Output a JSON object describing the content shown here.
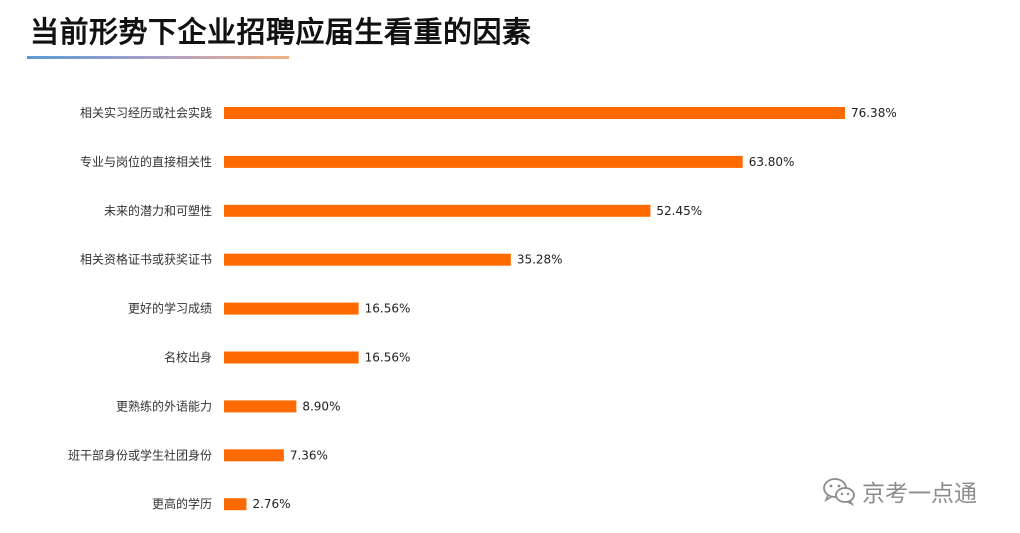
{
  "title": "当前形势下企业招聘应届生看重的因素",
  "watermark": {
    "text": "京考一点通",
    "icon": "wechat-icon"
  },
  "colors": {
    "bar": "#ff6a00",
    "accent_line_start": "#5b9bd5",
    "accent_line_end": "#f4b183"
  },
  "chart_data": {
    "type": "bar",
    "orientation": "horizontal",
    "title": "当前形势下企业招聘应届生看重的因素",
    "xlabel": "",
    "ylabel": "",
    "xlim": [
      0,
      100
    ],
    "grid": false,
    "legend": "none",
    "categories": [
      "相关实习经历或社会实践",
      "专业与岗位的直接相关性",
      "未来的潜力和可塑性",
      "相关资格证书或获奖证书",
      "更好的学习成绩",
      "名校出身",
      "更熟练的外语能力",
      "班干部身份或学生社团身份",
      "更高的学历"
    ],
    "values": [
      76.38,
      63.8,
      52.45,
      35.28,
      16.56,
      16.56,
      8.9,
      7.36,
      2.76
    ],
    "value_labels": [
      "76.38%",
      "63.80%",
      "52.45%",
      "35.28%",
      "16.56%",
      "16.56%",
      "8.90%",
      "7.36%",
      "2.76%"
    ]
  }
}
